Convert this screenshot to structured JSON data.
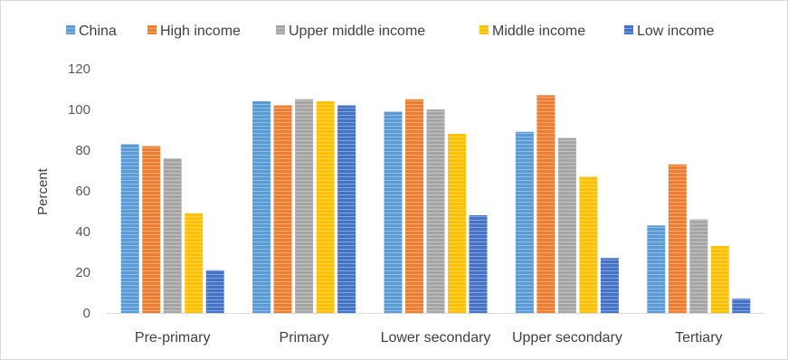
{
  "chart_data": {
    "type": "bar",
    "title": "",
    "xlabel": "",
    "ylabel": "Percent",
    "ylim": [
      0,
      120
    ],
    "yticks": [
      0,
      20,
      40,
      60,
      80,
      100,
      120
    ],
    "grid": false,
    "legend_position": "top",
    "categories": [
      "Pre-primary",
      "Primary",
      "Lower secondary",
      "Upper secondary",
      "Tertiary"
    ],
    "series": [
      {
        "name": "China",
        "color": "#5b9bd5",
        "values": [
          83,
          104,
          99,
          89,
          43
        ]
      },
      {
        "name": "High income",
        "color": "#ed7d31",
        "values": [
          82,
          102,
          105,
          107,
          73
        ]
      },
      {
        "name": "Upper middle income",
        "color": "#a5a5a5",
        "values": [
          76,
          105,
          100,
          86,
          46
        ]
      },
      {
        "name": "Middle income",
        "color": "#ffc000",
        "values": [
          49,
          104,
          88,
          67,
          33
        ]
      },
      {
        "name": "Low income",
        "color": "#4472c4",
        "values": [
          21,
          102,
          48,
          27,
          7
        ]
      }
    ]
  }
}
